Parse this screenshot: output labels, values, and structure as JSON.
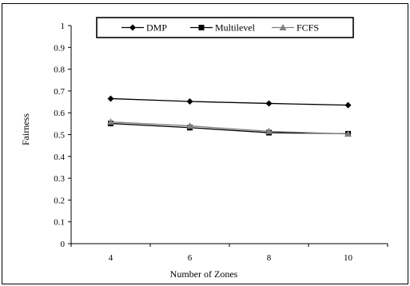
{
  "chart_data": {
    "type": "line",
    "title": "",
    "xlabel": "Number of Zones",
    "ylabel": "Fairness",
    "categories": [
      "4",
      "6",
      "8",
      "10"
    ],
    "ylim": [
      0,
      1
    ],
    "yticks": [
      "0",
      "0.1",
      "0.2",
      "0.3",
      "0.4",
      "0.5",
      "0.6",
      "0.7",
      "0.8",
      "0.9",
      "1"
    ],
    "grid": false,
    "legend_position": "top",
    "series": [
      {
        "name": "DMP",
        "values": [
          0.665,
          0.652,
          0.643,
          0.635
        ],
        "marker": "diamond",
        "color": "#000000"
      },
      {
        "name": "Multilevel",
        "values": [
          0.551,
          0.532,
          0.509,
          0.504
        ],
        "marker": "square",
        "color": "#000000"
      },
      {
        "name": "FCFS",
        "values": [
          0.558,
          0.54,
          0.515,
          0.503
        ],
        "marker": "triangle",
        "color": "#7f7f7f"
      }
    ]
  }
}
